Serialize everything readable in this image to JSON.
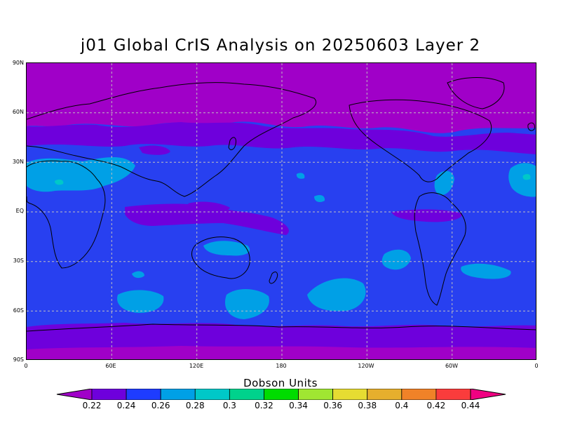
{
  "title": "j01 Global CrIS Analysis on 20250603 Layer 2",
  "lat_labels": [
    "90N",
    "60N",
    "30N",
    "EQ",
    "30S",
    "60S",
    "90S"
  ],
  "lon_labels": [
    "0",
    "60E",
    "120E",
    "180",
    "120W",
    "60W",
    "0"
  ],
  "colorbar": {
    "title": "Dobson Units",
    "ticks": [
      "0.22",
      "0.24",
      "0.26",
      "0.28",
      "0.3",
      "0.32",
      "0.34",
      "0.36",
      "0.38",
      "0.4",
      "0.42",
      "0.44"
    ],
    "colors": [
      "#a000c8",
      "#6e00dc",
      "#1e3cff",
      "#00a0e6",
      "#00c8c8",
      "#00d28c",
      "#00dc00",
      "#a0e632",
      "#e6dc32",
      "#e6af2d",
      "#f08228",
      "#fa3c3c",
      "#f00082"
    ]
  },
  "map": {
    "background_color": "#2840f0",
    "grid": "dashed",
    "projection": "cylindrical equidistant, 0 to 360 longitude"
  }
}
